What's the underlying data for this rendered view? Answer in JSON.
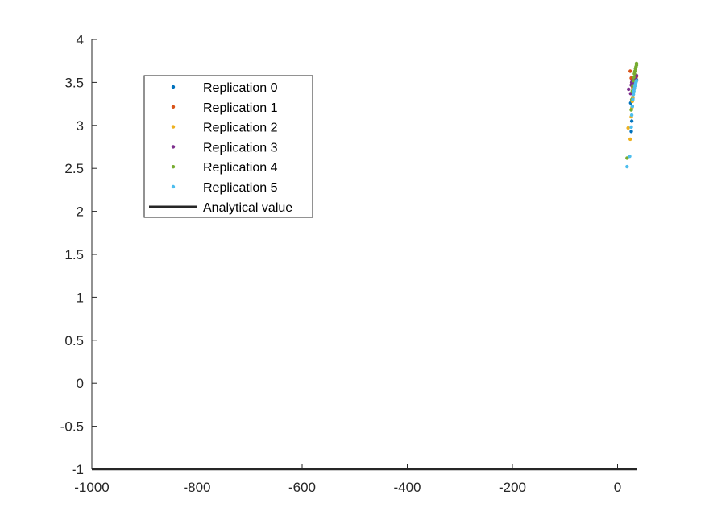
{
  "chart_data": {
    "type": "scatter",
    "xlim": [
      -1000,
      36
    ],
    "ylim": [
      -1,
      4
    ],
    "xticks": [
      -1000,
      -800,
      -600,
      -400,
      -200,
      0
    ],
    "yticks": [
      -1,
      -0.5,
      0,
      0.5,
      1,
      1.5,
      2,
      2.5,
      3,
      3.5,
      4
    ],
    "xtick_labels": [
      "-1000",
      "-800",
      "-600",
      "-400",
      "-200",
      "0"
    ],
    "ytick_labels": [
      "-1",
      "-0.5",
      "0",
      "0.5",
      "1",
      "1.5",
      "2",
      "2.5",
      "3",
      "3.5",
      "4"
    ],
    "grid": false,
    "legend_position": "top-left",
    "series": [
      {
        "name": "Replication 0",
        "color": "#0072BD",
        "marker": "dot",
        "points": [
          [
            25,
            3.26
          ],
          [
            26,
            2.93
          ],
          [
            27,
            3.05
          ],
          [
            28,
            3.22
          ],
          [
            29,
            3.32
          ],
          [
            30,
            3.38
          ],
          [
            31,
            3.42
          ],
          [
            32,
            3.45
          ],
          [
            33,
            3.48
          ],
          [
            34,
            3.5
          ],
          [
            35,
            3.52
          ],
          [
            36,
            3.53
          ]
        ]
      },
      {
        "name": "Replication 1",
        "color": "#D95319",
        "marker": "dot",
        "points": [
          [
            24,
            3.63
          ],
          [
            26,
            3.55
          ],
          [
            27,
            3.5
          ],
          [
            28,
            3.46
          ],
          [
            29,
            3.44
          ],
          [
            30,
            3.46
          ],
          [
            31,
            3.5
          ],
          [
            32,
            3.52
          ],
          [
            33,
            3.53
          ],
          [
            34,
            3.55
          ],
          [
            35,
            3.56
          ],
          [
            36,
            3.57
          ]
        ]
      },
      {
        "name": "Replication 2",
        "color": "#EDB120",
        "marker": "dot",
        "points": [
          [
            20,
            2.97
          ],
          [
            24,
            2.84
          ],
          [
            26,
            3.1
          ],
          [
            27,
            3.2
          ],
          [
            28,
            3.28
          ],
          [
            29,
            3.33
          ],
          [
            30,
            3.38
          ],
          [
            31,
            3.42
          ],
          [
            32,
            3.45
          ],
          [
            33,
            3.47
          ],
          [
            34,
            3.49
          ],
          [
            35,
            3.51
          ],
          [
            36,
            3.52
          ]
        ]
      },
      {
        "name": "Replication 3",
        "color": "#7E2F8E",
        "marker": "dot",
        "points": [
          [
            21,
            3.42
          ],
          [
            25,
            3.37
          ],
          [
            26,
            3.47
          ],
          [
            27,
            3.5
          ],
          [
            28,
            3.52
          ],
          [
            29,
            3.5
          ],
          [
            30,
            3.51
          ],
          [
            31,
            3.52
          ],
          [
            32,
            3.54
          ],
          [
            33,
            3.55
          ],
          [
            34,
            3.56
          ],
          [
            35,
            3.57
          ],
          [
            36,
            3.58
          ]
        ]
      },
      {
        "name": "Replication 4",
        "color": "#77AC30",
        "marker": "dot",
        "points": [
          [
            18,
            2.62
          ],
          [
            26,
            3.18
          ],
          [
            27,
            3.3
          ],
          [
            28,
            3.4
          ],
          [
            29,
            3.46
          ],
          [
            30,
            3.52
          ],
          [
            31,
            3.56
          ],
          [
            32,
            3.6
          ],
          [
            33,
            3.63
          ],
          [
            34,
            3.66
          ],
          [
            35,
            3.68
          ],
          [
            36,
            3.7
          ],
          [
            36,
            3.72
          ]
        ]
      },
      {
        "name": "Replication 5",
        "color": "#4DBEEE",
        "marker": "dot",
        "points": [
          [
            18,
            2.52
          ],
          [
            23,
            2.64
          ],
          [
            26,
            2.98
          ],
          [
            27,
            3.12
          ],
          [
            28,
            3.22
          ],
          [
            29,
            3.3
          ],
          [
            30,
            3.36
          ],
          [
            31,
            3.4
          ],
          [
            32,
            3.43
          ],
          [
            33,
            3.46
          ],
          [
            34,
            3.48
          ],
          [
            35,
            3.5
          ],
          [
            36,
            3.52
          ]
        ]
      },
      {
        "name": "Analytical value",
        "color": "#262626",
        "marker": "line",
        "points": [
          [
            -1000,
            -1
          ],
          [
            36,
            -1
          ]
        ]
      }
    ]
  }
}
